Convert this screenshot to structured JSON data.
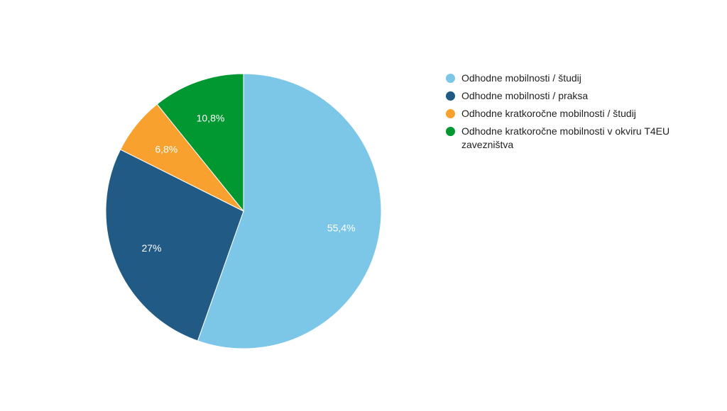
{
  "chart_data": {
    "type": "pie",
    "slices": [
      {
        "name": "Odhodne mobilnosti / študij",
        "value": 55.4,
        "label": "55,4%",
        "color": "#7cc6e8"
      },
      {
        "name": "Odhodne mobilnosti / praksa",
        "value": 27,
        "label": "27%",
        "color": "#215a84"
      },
      {
        "name": "Odhodne kratkoročne mobilnosti / študij",
        "value": 6.8,
        "label": "6,8%",
        "color": "#f9a12e"
      },
      {
        "name": "Odhodne kratkoročne mobilnosti v okviru T4EU zavezništva",
        "value": 10.8,
        "label": "10,8%",
        "color": "#019832"
      }
    ],
    "legend_position": "right",
    "start_angle": "top",
    "direction": "clockwise"
  }
}
